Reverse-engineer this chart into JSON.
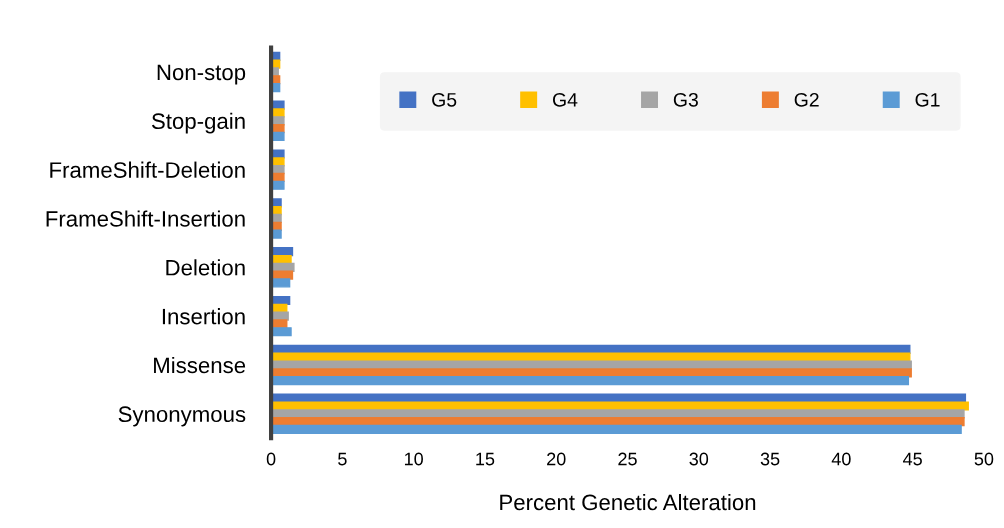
{
  "chart_data": {
    "type": "bar",
    "orientation": "horizontal",
    "xlabel": "Percent Genetic Alteration",
    "categories": [
      "Non-stop",
      "Stop-gain",
      "FrameShift-Deletion",
      "FrameShift-Insertion",
      "Deletion",
      "Insertion",
      "Missense",
      "Synonymous"
    ],
    "series": [
      {
        "name": "G5",
        "color": "#4472c4",
        "values": [
          0.6,
          0.9,
          0.9,
          0.7,
          1.5,
          1.3,
          44.8,
          48.7
        ]
      },
      {
        "name": "G4",
        "color": "#ffc000",
        "values": [
          0.6,
          0.9,
          0.9,
          0.7,
          1.4,
          1.1,
          44.8,
          48.9
        ]
      },
      {
        "name": "G3",
        "color": "#a5a5a5",
        "values": [
          0.5,
          0.9,
          0.9,
          0.7,
          1.6,
          1.2,
          44.9,
          48.6
        ]
      },
      {
        "name": "G2",
        "color": "#ed7d31",
        "values": [
          0.6,
          0.9,
          0.9,
          0.7,
          1.5,
          1.1,
          44.9,
          48.6
        ]
      },
      {
        "name": "G1",
        "color": "#5b9bd5",
        "values": [
          0.6,
          0.9,
          0.9,
          0.7,
          1.3,
          1.4,
          44.7,
          48.4
        ]
      }
    ],
    "xlim": [
      0,
      50
    ],
    "xticks": [
      0,
      5,
      10,
      15,
      20,
      25,
      30,
      35,
      40,
      45,
      50
    ],
    "grid": false,
    "legend": "top right"
  }
}
